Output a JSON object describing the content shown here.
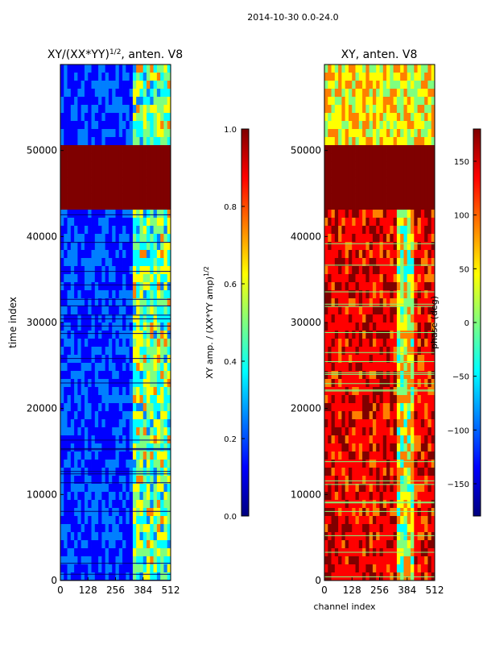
{
  "suptitle": "2014-10-30 0.0-24.0",
  "colors": {
    "jet": [
      "#00007f",
      "#0000ff",
      "#007fff",
      "#00ffff",
      "#7fff7f",
      "#ffff00",
      "#ff7f00",
      "#ff0000",
      "#7f0000"
    ],
    "saturated": "#7f0000",
    "axis": "#000000"
  },
  "chart_data": [
    {
      "type": "heatmap",
      "title": "XY/(XX*YY)",
      "title_sup": "1/2",
      "title_suffix": ", anten. V8",
      "xlabel": "",
      "ylabel": "time index",
      "xlim": [
        0,
        512
      ],
      "ylim": [
        0,
        60000
      ],
      "xticks": [
        0,
        128,
        256,
        384,
        512
      ],
      "yticks": [
        0,
        10000,
        20000,
        30000,
        40000,
        50000
      ],
      "saturated_band": [
        43000,
        50500
      ],
      "bright_channels": [
        330,
        512
      ],
      "colorbar": {
        "label": "XY amp. / (XX*YY amp)",
        "label_sup": "1/2",
        "range": [
          0.0,
          1.0
        ],
        "ticks": [
          "0.0",
          "0.2",
          "0.4",
          "0.6",
          "0.8",
          "1.0"
        ]
      }
    },
    {
      "type": "heatmap",
      "title": "XY, anten. V8",
      "xlabel": "channel index",
      "ylabel": "",
      "xlim": [
        0,
        512
      ],
      "ylim": [
        0,
        60000
      ],
      "xticks": [
        0,
        128,
        256,
        384,
        512
      ],
      "yticks": [
        0,
        10000,
        20000,
        30000,
        40000,
        50000
      ],
      "saturated_band": [
        43000,
        50500
      ],
      "colorbar": {
        "label": "phase (deg)",
        "range": [
          -180,
          180
        ],
        "ticks": [
          "150",
          "100",
          "50",
          "0",
          "−50",
          "−100",
          "−150"
        ],
        "tick_values": [
          150,
          100,
          50,
          0,
          -50,
          -100,
          -150
        ]
      }
    }
  ]
}
